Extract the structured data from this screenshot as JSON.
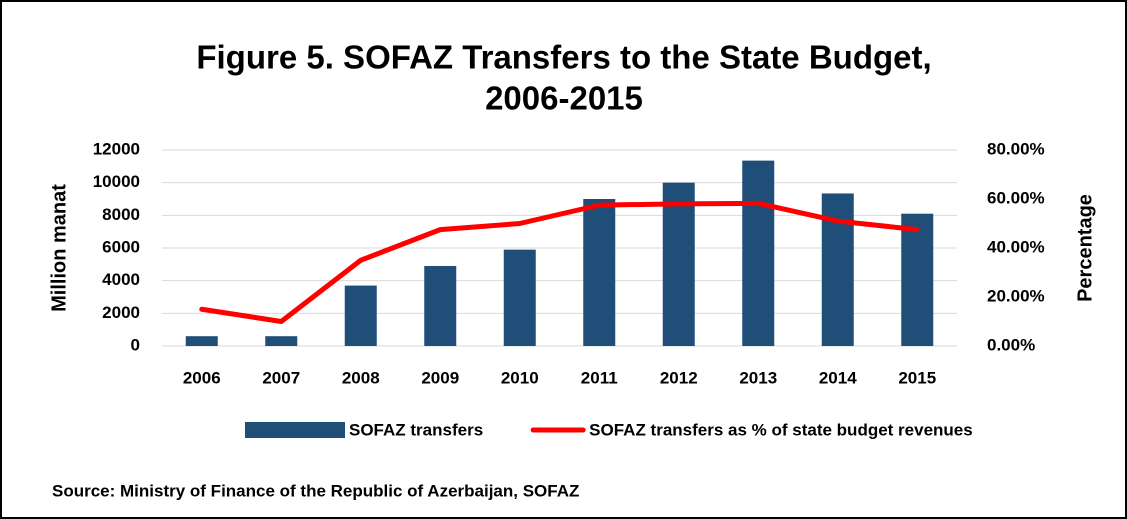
{
  "chart_data": {
    "type": "bar_line",
    "title": "Figure 5. SOFAZ Transfers to the State Budget,",
    "title_line2": "2006-2015",
    "y_label": "Million manat",
    "y2_label": "Percentage",
    "source": "Source: Ministry of Finance of the Republic of Azerbaijan, SOFAZ",
    "categories": [
      "2006",
      "2007",
      "2008",
      "2009",
      "2010",
      "2011",
      "2012",
      "2013",
      "2014",
      "2015"
    ],
    "series": [
      {
        "name": "SOFAZ transfers",
        "type": "bar",
        "color": "#1f4e79",
        "values": [
          600,
          600,
          3700,
          4900,
          5900,
          9000,
          10000,
          11350,
          9340,
          8100
        ]
      },
      {
        "name": "SOFAZ transfers as % of state budget revenues",
        "type": "line",
        "axis": "y2",
        "color": "#ff0000",
        "values": [
          15,
          10,
          35,
          47.5,
          50,
          57.5,
          58,
          58.2,
          51,
          47.5
        ]
      }
    ],
    "ylim": [
      0,
      12000
    ],
    "yticks": [
      0,
      2000,
      4000,
      6000,
      8000,
      10000,
      12000
    ],
    "y2lim": [
      0,
      80
    ],
    "y2ticks": [
      {
        "value": 0,
        "label": "0.00%"
      },
      {
        "value": 20,
        "label": "20.00%"
      },
      {
        "value": 40,
        "label": "40.00%"
      },
      {
        "value": 60,
        "label": "60.00%"
      },
      {
        "value": 80,
        "label": "80.00%"
      }
    ],
    "grid": true,
    "legend": "bottom"
  }
}
